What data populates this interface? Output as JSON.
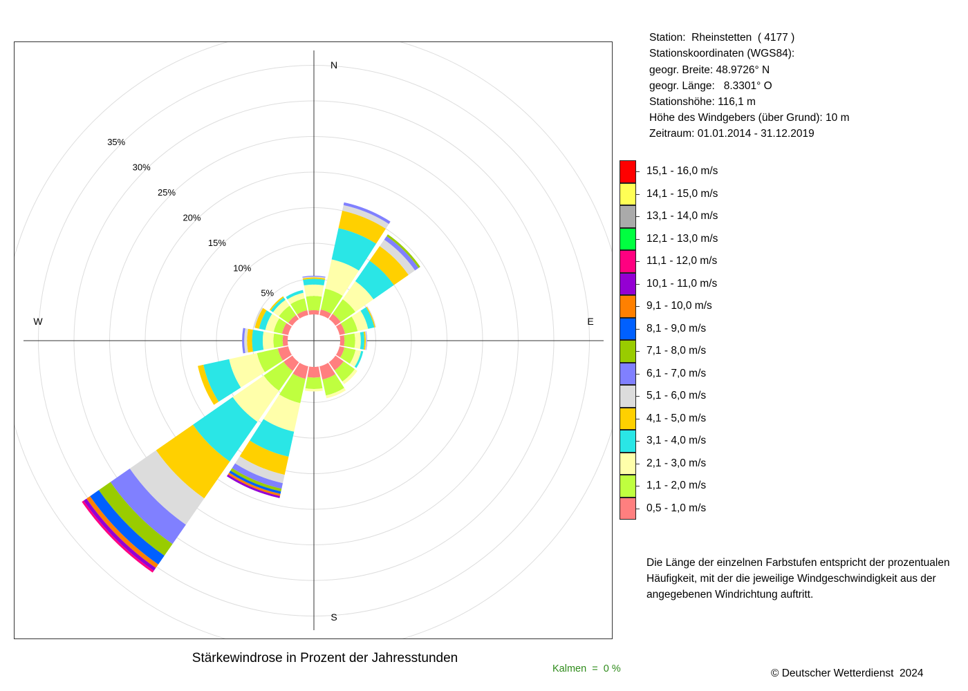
{
  "station": {
    "station_line": "Station:  Rheinstetten  ( 4177 )",
    "coords_heading": "Stationskoordinaten (WGS84):",
    "latitude_line": "geogr. Breite: 48.9726° N",
    "longitude_line": "geogr. Länge:   8.3301° O",
    "elevation_line": "Stationshöhe: 116,1 m",
    "sensor_height_line": "Höhe des Windgebers (über Grund): 10 m",
    "period_line": "Zeitraum: 01.01.2014 - 31.12.2019"
  },
  "note": "Die Länge der einzelnen Farbstufen entspricht der prozentualen Häufigkeit, mit der die jeweilige Windgeschwindigkeit aus der angegebenen Windrichtung auftritt.",
  "calm_label": "Kalmen  =  0 %",
  "copyright": "© Deutscher Wetterdienst  2024",
  "chart_data": {
    "type": "polar-stacked-bar (wind rose)",
    "title": "Stärkewindrose in Prozent der Jahresstunden",
    "directions": [
      "N",
      "NNE",
      "NE",
      "ENE",
      "E",
      "ESE",
      "SE",
      "SSE",
      "S",
      "SSW",
      "SW",
      "WSW",
      "W",
      "WNW",
      "NW",
      "NNW"
    ],
    "direction_angles_deg": [
      0,
      22.5,
      45,
      67.5,
      90,
      112.5,
      135,
      157.5,
      180,
      202.5,
      225,
      247.5,
      270,
      292.5,
      315,
      337.5
    ],
    "cardinal_labels": {
      "N": "N",
      "E": "E",
      "S": "S",
      "W": "W"
    },
    "radial_ticks": [
      5,
      10,
      15,
      20,
      25,
      30,
      35
    ],
    "radial_tick_labels": [
      "5%",
      "10%",
      "15%",
      "20%",
      "25%",
      "30%",
      "35%"
    ],
    "radial_max": 35,
    "speed_classes": [
      {
        "label": "0,5 - 1,0 m/s",
        "color": "#ff7f7f"
      },
      {
        "label": "1,1 - 2,0 m/s",
        "color": "#bfff3f"
      },
      {
        "label": "2,1 - 3,0 m/s",
        "color": "#ffffaa"
      },
      {
        "label": "3,1 - 4,0 m/s",
        "color": "#2ae6e6"
      },
      {
        "label": "4,1 - 5,0 m/s",
        "color": "#ffd000"
      },
      {
        "label": "5,1 - 6,0 m/s",
        "color": "#dcdcdc"
      },
      {
        "label": "6,1 - 7,0 m/s",
        "color": "#8080ff"
      },
      {
        "label": "7,1 - 8,0 m/s",
        "color": "#99cc00"
      },
      {
        "label": "8,1 - 9,0 m/s",
        "color": "#0060ff"
      },
      {
        "label": "9,1 - 10,0 m/s",
        "color": "#ff8000"
      },
      {
        "label": "10,1 - 11,0 m/s",
        "color": "#9400d3"
      },
      {
        "label": "11,1 - 12,0 m/s",
        "color": "#ff0080"
      },
      {
        "label": "12,1 - 13,0 m/s",
        "color": "#00ff40"
      },
      {
        "label": "13,1 - 14,0 m/s",
        "color": "#aaaaaa"
      },
      {
        "label": "14,1 - 15,0 m/s",
        "color": "#ffff55"
      },
      {
        "label": "15,1 - 16,0 m/s",
        "color": "#ff0000"
      }
    ],
    "series": [
      {
        "direction": "N",
        "values": [
          0.6,
          2.0,
          1.6,
          0.8,
          0.2,
          0.12,
          0.12
        ]
      },
      {
        "direction": "NNE",
        "values": [
          0.8,
          3.0,
          4.2,
          4.5,
          2.5,
          0.8,
          0.4
        ]
      },
      {
        "direction": "NE",
        "values": [
          0.9,
          2.5,
          3.1,
          3.5,
          2.5,
          1.1,
          0.6,
          0.3
        ]
      },
      {
        "direction": "ENE",
        "values": [
          0.8,
          1.8,
          1.5,
          0.9,
          0.15,
          0.1
        ]
      },
      {
        "direction": "E",
        "values": [
          0.6,
          1.5,
          0.8,
          0.5,
          0.2,
          0.12,
          0.06
        ]
      },
      {
        "direction": "ESE",
        "values": [
          0.7,
          1.6,
          0.8,
          0.3
        ]
      },
      {
        "direction": "SE",
        "values": [
          1.4,
          1.9,
          0.45
        ]
      },
      {
        "direction": "SSE",
        "values": [
          1.9,
          2.3,
          0.4
        ]
      },
      {
        "direction": "S",
        "values": [
          1.5,
          1.6,
          0.35
        ]
      },
      {
        "direction": "SSW",
        "values": [
          1.8,
          3.5,
          4.1,
          3.6,
          2.6,
          1.2,
          0.8,
          0.4,
          0.35,
          0.3,
          0.3
        ]
      },
      {
        "direction": "SW",
        "values": [
          1.5,
          3.4,
          5.3,
          6.8,
          6.3,
          4.5,
          3.3,
          2.0,
          1.5,
          0.6,
          0.5,
          0.3
        ]
      },
      {
        "direction": "WSW",
        "values": [
          1.5,
          3.0,
          4.0,
          3.7,
          0.8
        ]
      },
      {
        "direction": "W",
        "values": [
          0.7,
          1.3,
          1.5,
          1.5,
          0.7,
          0.4,
          0.3
        ]
      },
      {
        "direction": "WNW",
        "values": [
          0.9,
          1.2,
          1.2,
          0.9,
          0.6,
          0.2
        ]
      },
      {
        "direction": "NW",
        "values": [
          0.7,
          1.6,
          1.0,
          0.4,
          0.2
        ]
      },
      {
        "direction": "NNW",
        "values": [
          0.7,
          1.7,
          0.8,
          0.4
        ]
      }
    ]
  }
}
